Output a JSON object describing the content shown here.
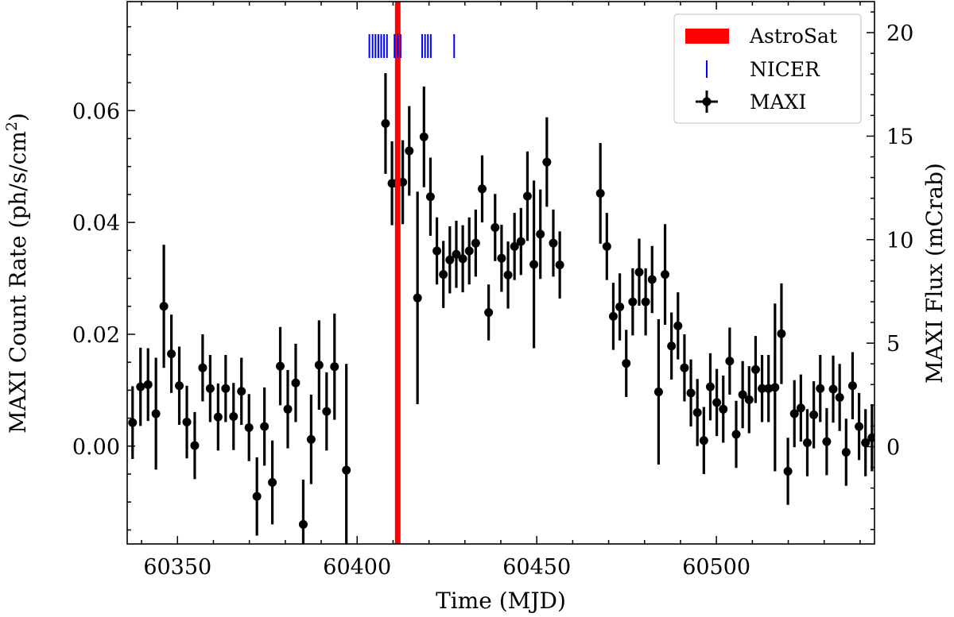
{
  "chart_data": {
    "type": "scatter",
    "xlabel": "Time (MJD)",
    "ylabel_left": "MAXI Count Rate (ph/s/cm",
    "ylabel_left_sup": "2",
    "ylabel_left_close": ")",
    "ylabel_right": "MAXI Flux (mCrab)",
    "xlim": [
      60336,
      60544
    ],
    "ylim_left": [
      -0.0175,
      0.0795
    ],
    "ylim_right": [
      -4.7,
      21.5
    ],
    "x_ticks": [
      60350,
      60400,
      60450,
      60500
    ],
    "y_left_ticks": [
      0.0,
      0.02,
      0.04,
      0.06
    ],
    "y_left_tick_labels": [
      "0.00",
      "0.02",
      "0.04",
      "0.06"
    ],
    "y_right_ticks": [
      0,
      5,
      10,
      15,
      20
    ],
    "legend": {
      "position": "top-right",
      "entries": [
        {
          "label": "AstroSat",
          "color": "#ff0000",
          "marker": "band"
        },
        {
          "label": "NICER",
          "color": "#0000ff",
          "marker": "vline"
        },
        {
          "label": "MAXI",
          "color": "#000000",
          "marker": "errorbar-point"
        }
      ]
    },
    "astrosat": {
      "name": "AstroSat",
      "mjd": 60411.3,
      "color": "#ff0000"
    },
    "nicer": {
      "name": "NICER",
      "color": "#0000ff",
      "mjd": [
        60403.4,
        60404.3,
        60405.1,
        60405.9,
        60406.7,
        60407.5,
        60408.3,
        60410.4,
        60411.3,
        60412.1,
        60418.1,
        60418.9,
        60419.7,
        60420.5,
        60427.0
      ]
    },
    "maxi": {
      "name": "MAXI",
      "color": "#000000",
      "points": [
        [
          60337.5,
          0.0042,
          0.0065
        ],
        [
          60339.7,
          0.0106,
          0.007
        ],
        [
          60341.8,
          0.011,
          0.0065
        ],
        [
          60344.0,
          0.0058,
          0.01
        ],
        [
          60346.2,
          0.025,
          0.011
        ],
        [
          60348.3,
          0.0165,
          0.007
        ],
        [
          60350.5,
          0.0108,
          0.007
        ],
        [
          60352.6,
          0.0043,
          0.0065
        ],
        [
          60354.8,
          0.0001,
          0.006
        ],
        [
          60357.0,
          0.014,
          0.006
        ],
        [
          60359.1,
          0.0103,
          0.006
        ],
        [
          60361.3,
          0.0052,
          0.006
        ],
        [
          60363.4,
          0.0103,
          0.006
        ],
        [
          60365.6,
          0.0053,
          0.006
        ],
        [
          60367.8,
          0.0098,
          0.006
        ],
        [
          60369.9,
          0.0033,
          0.006
        ],
        [
          60372.1,
          -0.009,
          0.007
        ],
        [
          60374.2,
          0.0035,
          0.007
        ],
        [
          60376.4,
          -0.0065,
          0.0075
        ],
        [
          60378.6,
          0.0143,
          0.007
        ],
        [
          60380.7,
          0.0066,
          0.007
        ],
        [
          60382.9,
          0.0113,
          0.007
        ],
        [
          60385.0,
          -0.014,
          0.008
        ],
        [
          60387.2,
          0.0012,
          0.008
        ],
        [
          60389.4,
          0.0145,
          0.008
        ],
        [
          60391.5,
          0.0062,
          0.007
        ],
        [
          60393.7,
          0.0142,
          0.0095
        ],
        [
          60397.0,
          -0.0043,
          0.019
        ],
        [
          60407.9,
          0.0577,
          0.009
        ],
        [
          60409.7,
          0.047,
          0.0075
        ],
        [
          60410.9,
          0.047,
          0.0075
        ],
        [
          60412.7,
          0.0472,
          0.0075
        ],
        [
          60414.5,
          0.0528,
          0.008
        ],
        [
          60416.8,
          0.0265,
          0.019
        ],
        [
          60418.6,
          0.0553,
          0.009
        ],
        [
          60420.4,
          0.0446,
          0.007
        ],
        [
          60422.2,
          0.0349,
          0.006
        ],
        [
          60424.0,
          0.0307,
          0.006
        ],
        [
          60425.8,
          0.0333,
          0.006
        ],
        [
          60427.6,
          0.0343,
          0.006
        ],
        [
          60429.4,
          0.0335,
          0.006
        ],
        [
          60431.2,
          0.0349,
          0.006
        ],
        [
          60433.0,
          0.0363,
          0.006
        ],
        [
          60434.8,
          0.046,
          0.006
        ],
        [
          60436.6,
          0.0239,
          0.005
        ],
        [
          60438.4,
          0.0391,
          0.006
        ],
        [
          60440.2,
          0.0336,
          0.006
        ],
        [
          60442.0,
          0.0306,
          0.006
        ],
        [
          60443.8,
          0.0357,
          0.006
        ],
        [
          60445.6,
          0.0366,
          0.006
        ],
        [
          60447.4,
          0.0447,
          0.008
        ],
        [
          60449.2,
          0.0325,
          0.015
        ],
        [
          60451.0,
          0.0379,
          0.008
        ],
        [
          60452.8,
          0.0508,
          0.008
        ],
        [
          60454.6,
          0.0363,
          0.006
        ],
        [
          60456.4,
          0.0324,
          0.006
        ],
        [
          60467.7,
          0.0452,
          0.009
        ],
        [
          60469.5,
          0.0357,
          0.006
        ],
        [
          60471.3,
          0.0232,
          0.006
        ],
        [
          60473.1,
          0.0249,
          0.006
        ],
        [
          60474.9,
          0.0148,
          0.006
        ],
        [
          60476.7,
          0.0258,
          0.006
        ],
        [
          60478.5,
          0.0311,
          0.006
        ],
        [
          60480.3,
          0.0258,
          0.006
        ],
        [
          60482.1,
          0.0298,
          0.006
        ],
        [
          60483.9,
          0.0097,
          0.013
        ],
        [
          60485.7,
          0.0307,
          0.009
        ],
        [
          60487.5,
          0.0179,
          0.006
        ],
        [
          60489.3,
          0.0215,
          0.006
        ],
        [
          60491.1,
          0.014,
          0.006
        ],
        [
          60492.9,
          0.0095,
          0.006
        ],
        [
          60494.7,
          0.006,
          0.006
        ],
        [
          60496.5,
          0.001,
          0.006
        ],
        [
          60498.3,
          0.0106,
          0.006
        ],
        [
          60500.1,
          0.0078,
          0.006
        ],
        [
          60501.9,
          0.0066,
          0.006
        ],
        [
          60503.7,
          0.0152,
          0.006
        ],
        [
          60505.5,
          0.0021,
          0.006
        ],
        [
          60507.3,
          0.0092,
          0.006
        ],
        [
          60509.1,
          0.0083,
          0.006
        ],
        [
          60510.9,
          0.0137,
          0.006
        ],
        [
          60512.7,
          0.0103,
          0.006
        ],
        [
          60514.5,
          0.0103,
          0.006
        ],
        [
          60516.3,
          0.0105,
          0.015
        ],
        [
          60518.1,
          0.0201,
          0.009
        ],
        [
          60519.9,
          -0.0045,
          0.006
        ],
        [
          60521.7,
          0.0058,
          0.006
        ],
        [
          60523.5,
          0.0068,
          0.006
        ],
        [
          60525.3,
          0.0006,
          0.006
        ],
        [
          60527.1,
          0.0056,
          0.006
        ],
        [
          60528.9,
          0.0103,
          0.006
        ],
        [
          60530.7,
          0.0008,
          0.006
        ],
        [
          60532.5,
          0.0102,
          0.006
        ],
        [
          60534.3,
          0.0087,
          0.006
        ],
        [
          60536.1,
          -0.0011,
          0.006
        ],
        [
          60537.9,
          0.0108,
          0.006
        ],
        [
          60539.7,
          0.0035,
          0.006
        ],
        [
          60541.5,
          0.0006,
          0.006
        ],
        [
          60543.3,
          0.0015,
          0.006
        ]
      ]
    }
  }
}
